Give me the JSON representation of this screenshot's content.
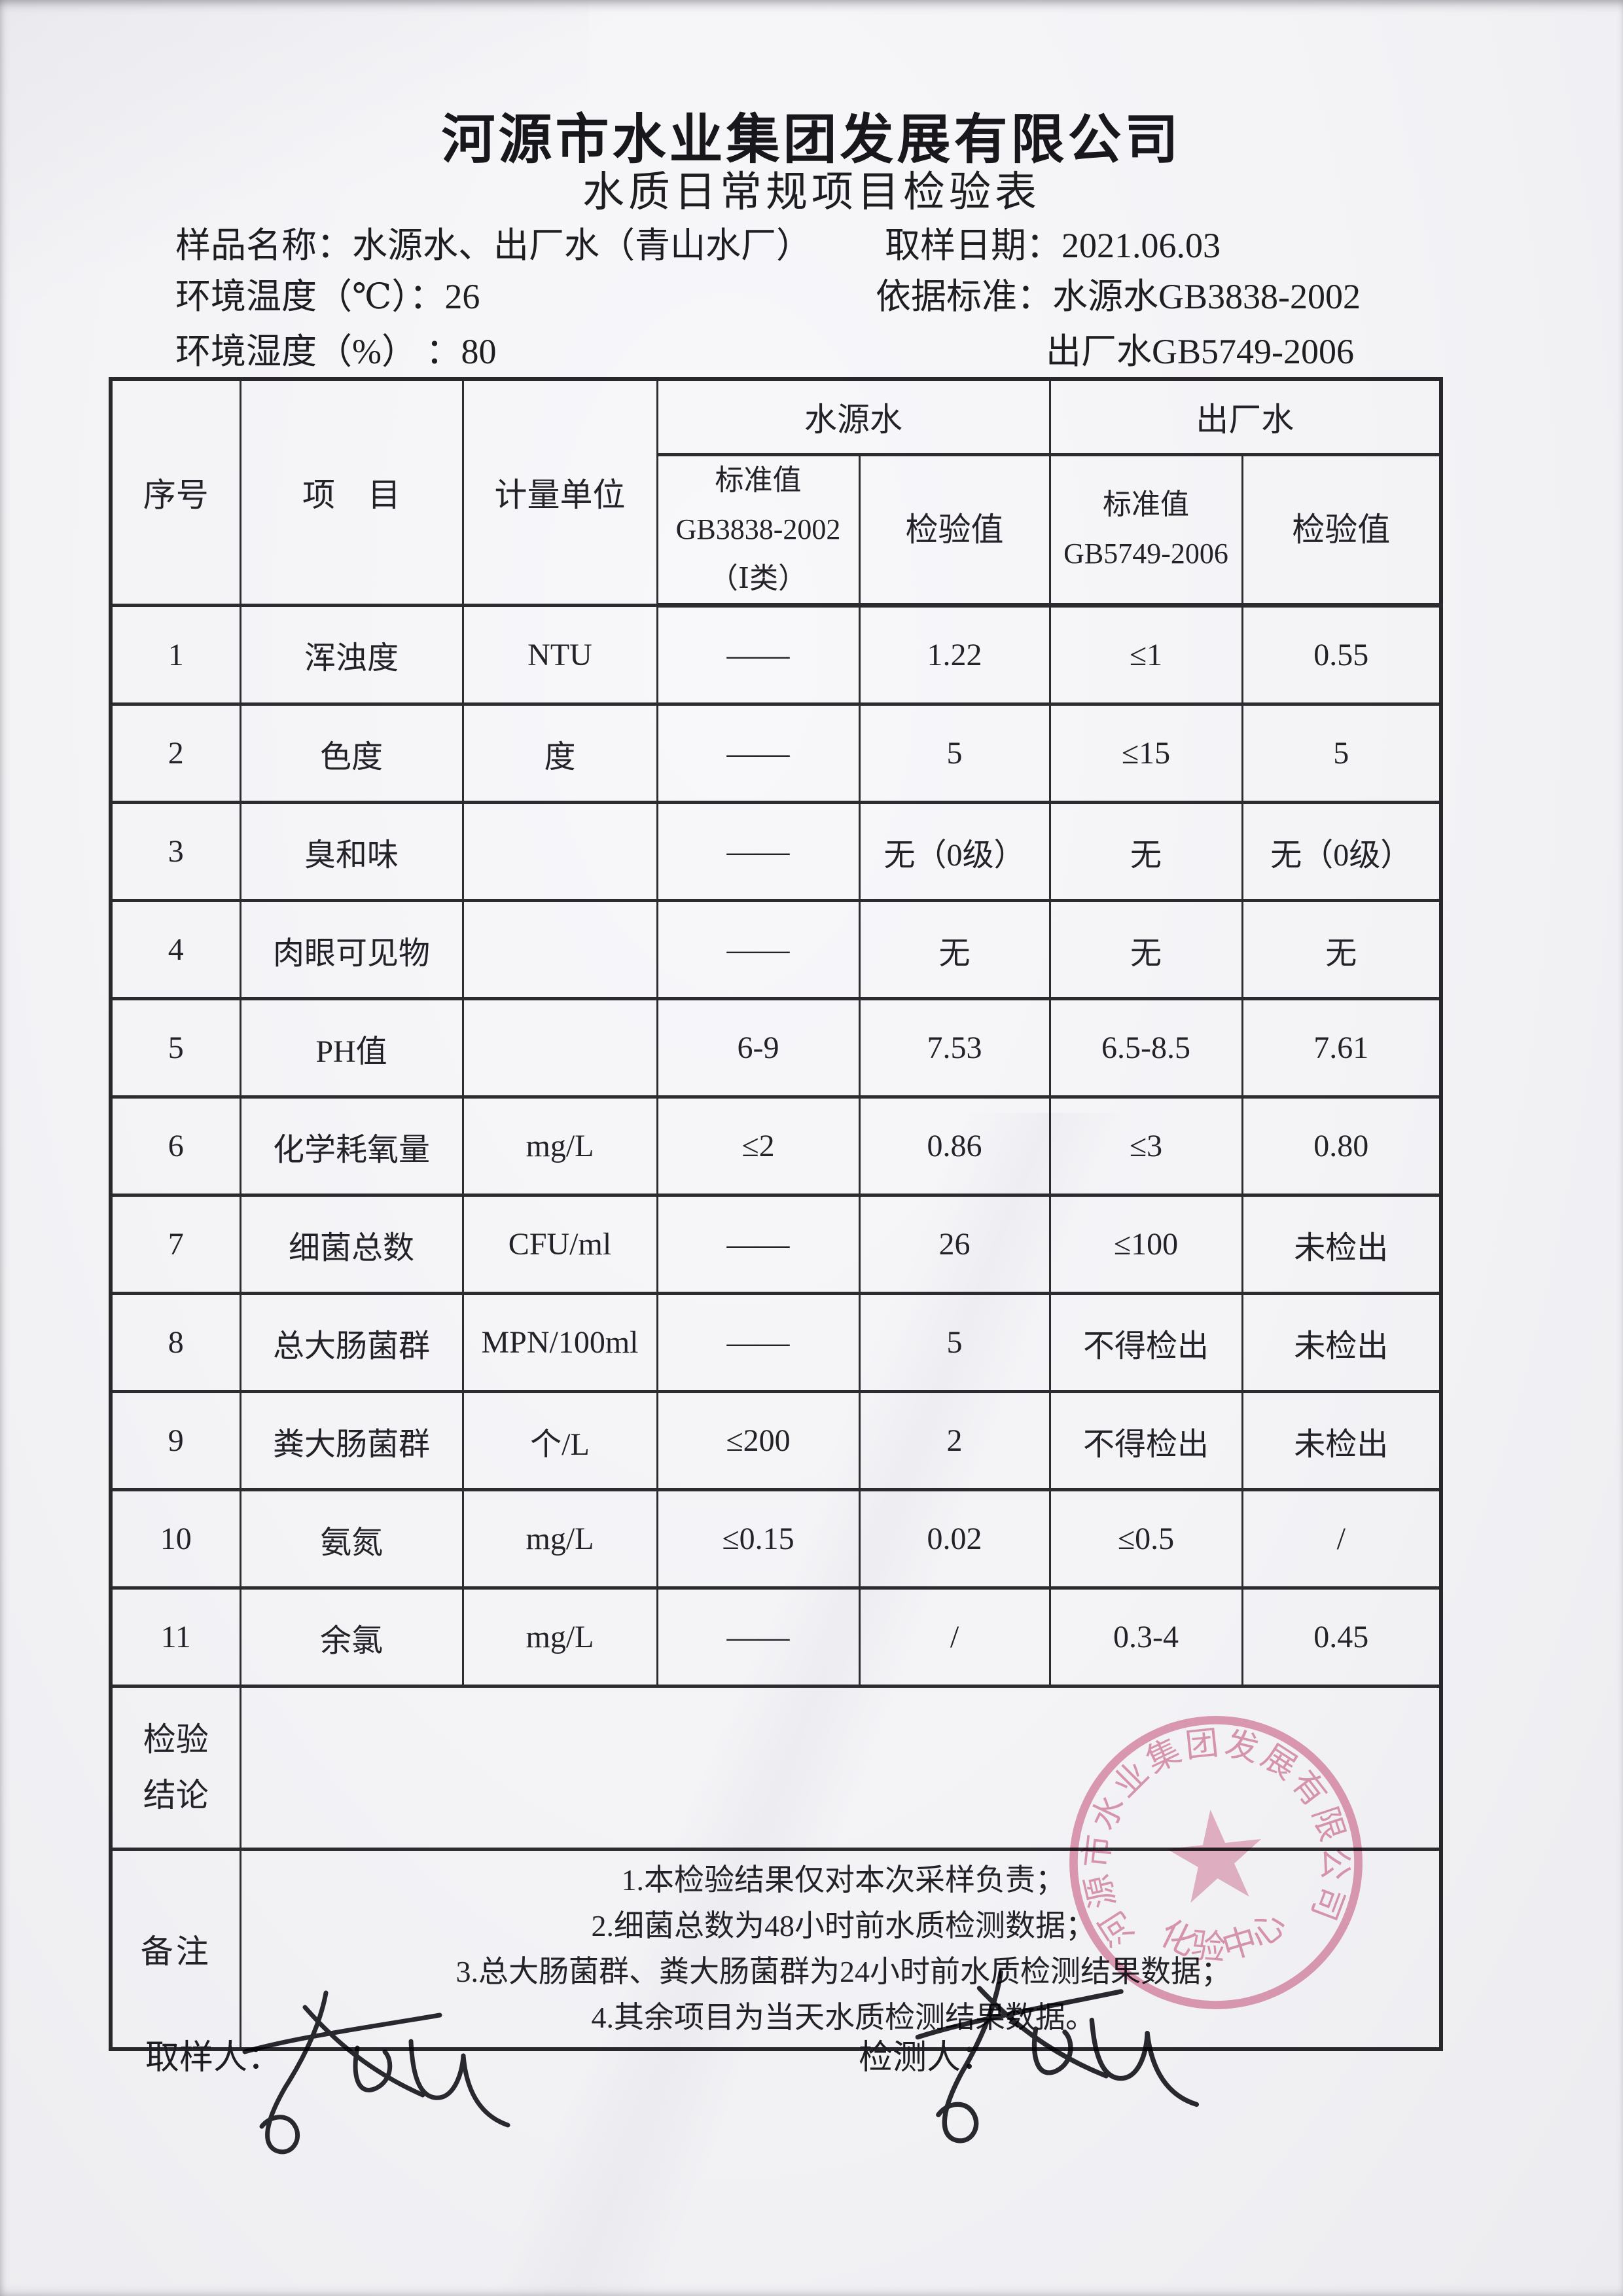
{
  "header": {
    "company": "河源市水业集团发展有限公司",
    "title": "水质日常规项目检验表"
  },
  "info": {
    "sample_label": "样品名称：",
    "sample_value": "水源水、出厂水（青山水厂）",
    "date_label": "取样日期：",
    "date_value": "2021.06.03",
    "temp_label": "环境温度（℃）：",
    "temp_value": "26",
    "standard_label": "依据标准：",
    "standard_source_value": "水源水GB3838-2002",
    "humidity_label": "环境湿度（%） ：",
    "humidity_value": "80",
    "standard_outlet_value": "出厂水GB5749-2006"
  },
  "table": {
    "col_no": "序号",
    "col_item": "项　目",
    "col_unit": "计量单位",
    "group_source": "水源水",
    "group_outlet": "出厂水",
    "source_std_header": "标准值\nGB3838-2002\n（Ⅰ类）",
    "source_val_header": "检验值",
    "outlet_std_header": "标准值\nGB5749-2006",
    "outlet_val_header": "检验值",
    "rows": [
      [
        "1",
        "浑浊度",
        "NTU",
        "——",
        "1.22",
        "≤1",
        "0.55"
      ],
      [
        "2",
        "色度",
        "度",
        "——",
        "5",
        "≤15",
        "5"
      ],
      [
        "3",
        "臭和味",
        "",
        "——",
        "无（0级）",
        "无",
        "无（0级）"
      ],
      [
        "4",
        "肉眼可见物",
        "",
        "——",
        "无",
        "无",
        "无"
      ],
      [
        "5",
        "PH值",
        "",
        "6-9",
        "7.53",
        "6.5-8.5",
        "7.61"
      ],
      [
        "6",
        "化学耗氧量",
        "mg/L",
        "≤2",
        "0.86",
        "≤3",
        "0.80"
      ],
      [
        "7",
        "细菌总数",
        "CFU/ml",
        "——",
        "26",
        "≤100",
        "未检出"
      ],
      [
        "8",
        "总大肠菌群",
        "MPN/100ml",
        "——",
        "5",
        "不得检出",
        "未检出"
      ],
      [
        "9",
        "粪大肠菌群",
        "个/L",
        "≤200",
        "2",
        "不得检出",
        "未检出"
      ],
      [
        "10",
        "氨氮",
        "mg/L",
        "≤0.15",
        "0.02",
        "≤0.5",
        "/"
      ],
      [
        "11",
        "余氯",
        "mg/L",
        "——",
        "/",
        "0.3-4",
        "0.45"
      ]
    ],
    "conclusion_label": "检验\n结论",
    "conclusion_value": "",
    "remarks_label": "备注",
    "remarks": [
      "1.本检验结果仅对本次采样负责；",
      "2.细菌总数为48小时前水质检测数据；",
      "3.总大肠菌群、粪大肠菌群为24小时前水质检测结果数据；",
      "4.其余项目为当天水质检测结果数据。"
    ]
  },
  "footer": {
    "sampler_label": "取样人：",
    "tester_label": "检测人："
  },
  "stamp": {
    "company_arc": "河源市水业集团发展有限公司",
    "center_label": "化验中心",
    "color": "#d4698c"
  },
  "colors": {
    "ink": "#1d1d22",
    "paper": "#f3f3f6",
    "table_line": "#2c2c30"
  }
}
